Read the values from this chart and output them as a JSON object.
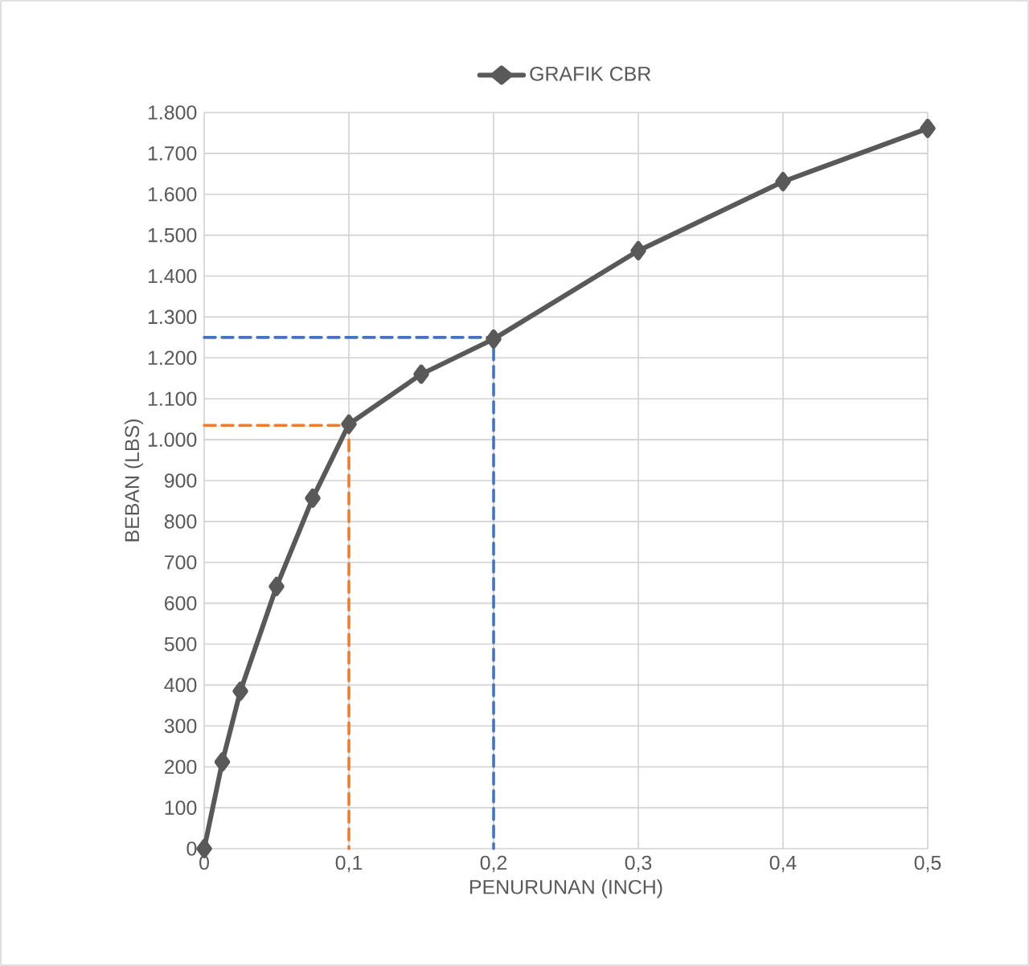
{
  "chart_data": {
    "type": "line",
    "xlabel": "PENURUNAN (INCH)",
    "ylabel": "BEBAN (LBS)",
    "x": [
      0,
      0.0125,
      0.025,
      0.05,
      0.075,
      0.1,
      0.15,
      0.2,
      0.3,
      0.4,
      0.5
    ],
    "series": [
      {
        "name": "GRAFIK CBR",
        "color": "#595959",
        "values": [
          0,
          212,
          385,
          641,
          857,
          1038,
          1160,
          1246,
          1462,
          1631,
          1761
        ]
      },
      {
        "color": "#ed7d31",
        "x": [
          0,
          0.1,
          0.1
        ],
        "values": [
          1035,
          1035,
          0
        ],
        "line_style": "dashed",
        "marker": "none"
      },
      {
        "color": "#4472c4",
        "x": [
          0,
          0.2,
          0.2
        ],
        "values": [
          1250,
          1250,
          0
        ],
        "line_style": "dashed",
        "marker": "none"
      }
    ],
    "xlim": [
      0,
      0.5
    ],
    "ylim": [
      0,
      1800
    ],
    "xticks": [
      0,
      {
        "value": 0.1,
        "label": "0,1"
      },
      {
        "value": 0.2,
        "label": "0,2"
      },
      {
        "value": 0.3,
        "label": "0,3"
      },
      {
        "value": 0.4,
        "label": "0,4"
      },
      {
        "value": 0.5,
        "label": "0,5"
      }
    ],
    "yticks": [
      0,
      100,
      200,
      300,
      400,
      500,
      600,
      700,
      800,
      900,
      {
        "value": 1000,
        "label": "1.000"
      },
      {
        "value": 1100,
        "label": "1.100"
      },
      {
        "value": 1200,
        "label": "1.200"
      },
      {
        "value": 1300,
        "label": "1.300"
      },
      {
        "value": 1400,
        "label": "1.400"
      },
      {
        "value": 1500,
        "label": "1.500"
      },
      {
        "value": 1600,
        "label": "1.600"
      },
      {
        "value": 1700,
        "label": "1.700"
      },
      {
        "value": 1800,
        "label": "1.800"
      }
    ],
    "grid": true,
    "legend": "top",
    "marker": "diamond",
    "line_style": "solid"
  }
}
